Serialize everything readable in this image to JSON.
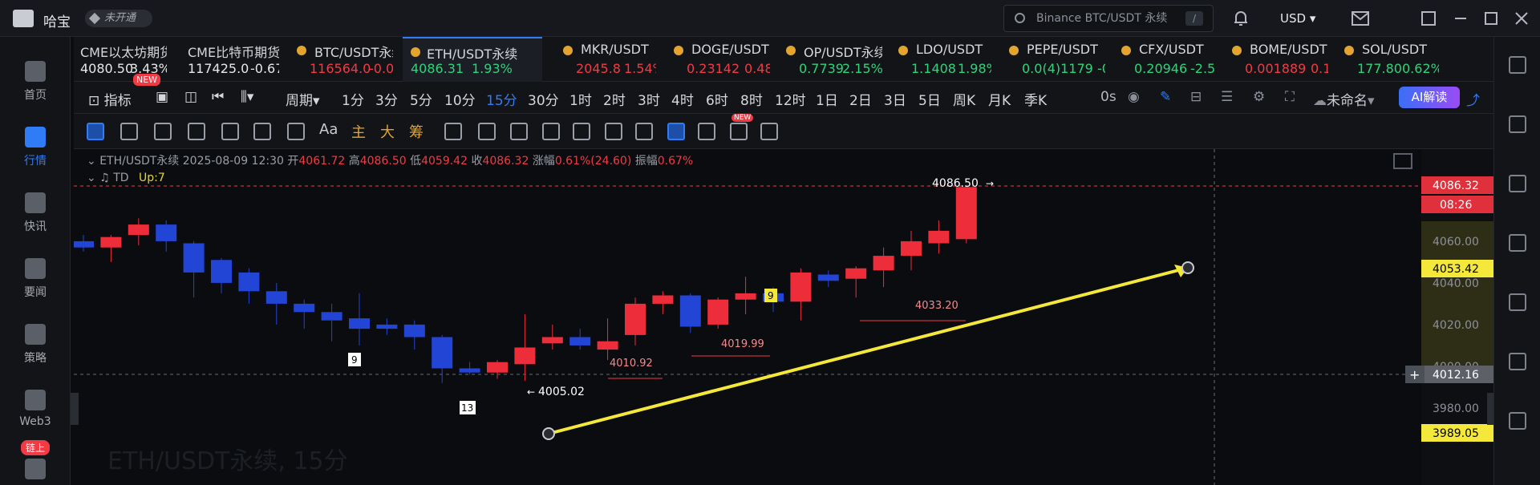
{
  "app": {
    "name": "哈宝",
    "vip_label": "未开通"
  },
  "search": {
    "placeholder": "Binance BTC/USDT 永续",
    "shortcut": "/"
  },
  "currency": "USD",
  "sidebar": {
    "items": [
      {
        "label": "首页",
        "icon": "home-icon"
      },
      {
        "label": "行情",
        "icon": "chart-icon"
      },
      {
        "label": "快讯",
        "icon": "flash-news-icon"
      },
      {
        "label": "要闻",
        "icon": "news-icon"
      },
      {
        "label": "策略",
        "icon": "robot-icon"
      },
      {
        "label": "Web3",
        "icon": "web3-icon"
      },
      {
        "label": "链上",
        "icon": "onchain-icon"
      }
    ]
  },
  "tabs": [
    {
      "name": "CME以太坊期货",
      "price": "4080.50",
      "change": "3.43%",
      "color": "white"
    },
    {
      "name": "CME比特币期货",
      "price": "117425.0",
      "change": "-0.67%",
      "color": "white"
    },
    {
      "name": "BTC/USDT永续",
      "price": "116564.0",
      "change": "-0.0",
      "color": "red"
    },
    {
      "name": "ETH/USDT永续",
      "price": "4086.31",
      "change": "1.93%",
      "color": "green"
    },
    {
      "name": "MKR/USDT",
      "price": "2045.8",
      "change": "1.54%",
      "color": "red"
    },
    {
      "name": "DOGE/USDT",
      "price": "0.23142",
      "change": "0.48",
      "color": "red"
    },
    {
      "name": "OP/USDT永续",
      "price": "0.7739",
      "change": "2.15%",
      "color": "green"
    },
    {
      "name": "LDO/USDT",
      "price": "1.1408",
      "change": "1.98%",
      "color": "green"
    },
    {
      "name": "PEPE/USDT",
      "price": "0.0(4)1179",
      "change": "-0",
      "color": "green"
    },
    {
      "name": "CFX/USDT",
      "price": "0.20946",
      "change": "-2.5",
      "color": "green"
    },
    {
      "name": "BOME/USDT",
      "price": "0.001889",
      "change": "0.1",
      "color": "red"
    },
    {
      "name": "SOL/USDT",
      "price": "177.80",
      "change": "0.62%",
      "color": "green"
    }
  ],
  "toolbar": {
    "indicator": "指标",
    "new": "NEW",
    "period": "周期",
    "intervals": [
      "1分",
      "3分",
      "5分",
      "10分",
      "15分",
      "30分",
      "1时",
      "2时",
      "3时",
      "4时",
      "6时",
      "8时",
      "12时",
      "1日",
      "2日",
      "3日",
      "5日",
      "周K",
      "月K",
      "季K"
    ],
    "selected": "15分",
    "countdown": "0s",
    "layout_name": "未命名",
    "ai": "AI解读"
  },
  "draw_tools": {
    "text1": "Aa",
    "text2": "主",
    "text3": "大",
    "text4": "筹",
    "new": "NEW"
  },
  "chart": {
    "symbol": "ETH/USDT永续",
    "datetime": "2025-08-09 12:30",
    "open_label": "开",
    "open": "4061.72",
    "high_label": "高",
    "high": "4086.50",
    "low_label": "低",
    "low": "4059.42",
    "close_label": "收",
    "close": "4086.32",
    "chg_label": "涨幅",
    "chg": "0.61%(24.60)",
    "amp_label": "振幅",
    "amp": "0.67%",
    "td_label": "TD",
    "td_up": "Up:7",
    "watermark": "ETH/USDT永续, 15分",
    "price_axis": [
      "4060.00",
      "4040.00",
      "4020.00",
      "4000.00",
      "3980.00"
    ],
    "last_price": "4086.32",
    "countdown": "08:26",
    "yellow_label_1": "4053.42",
    "yellow_label_2": "3989.05",
    "crosshair_price": "4012.16",
    "annotations": {
      "high": "4086.50",
      "low": "4005.02",
      "level1": "4010.92",
      "level2": "4019.99",
      "level3": "4033.20",
      "td9a": "9",
      "td13": "13",
      "td9b": "9"
    }
  },
  "chart_data": {
    "type": "candlestick",
    "ohlc": [
      [
        4060,
        4063,
        4055,
        4057
      ],
      [
        4057,
        4063,
        4050,
        4062
      ],
      [
        4063,
        4071,
        4058,
        4068
      ],
      [
        4068,
        4070,
        4055,
        4060
      ],
      [
        4059,
        4060,
        4033,
        4045
      ],
      [
        4051,
        4052,
        4035,
        4040
      ],
      [
        4045,
        4047,
        4030,
        4036
      ],
      [
        4036,
        4040,
        4020,
        4030
      ],
      [
        4030,
        4032,
        4018,
        4026
      ],
      [
        4026,
        4030,
        4012,
        4022
      ],
      [
        4023,
        4035,
        4010,
        4018
      ],
      [
        4020,
        4023,
        4015,
        4018
      ],
      [
        4020,
        4022,
        4008,
        4014
      ],
      [
        4014,
        4015,
        3992,
        3999
      ],
      [
        3999,
        4002,
        3996,
        3997
      ],
      [
        3997,
        4003,
        3994,
        4002
      ],
      [
        4001,
        4025,
        3993,
        4009
      ],
      [
        4011,
        4020,
        4008,
        4014
      ],
      [
        4014,
        4018,
        4008,
        4010
      ],
      [
        4008,
        4023,
        4003,
        4012
      ],
      [
        4015,
        4033,
        4010,
        4030
      ],
      [
        4030,
        4036,
        4025,
        4034
      ],
      [
        4034,
        4035,
        4016,
        4019
      ],
      [
        4020,
        4033,
        4018,
        4032
      ],
      [
        4032,
        4043,
        4025,
        4035
      ],
      [
        4035,
        4038,
        4026,
        4031
      ],
      [
        4031,
        4047,
        4022,
        4045
      ],
      [
        4044,
        4046,
        4038,
        4041
      ],
      [
        4042,
        4048,
        4033,
        4047
      ],
      [
        4046,
        4057,
        4038,
        4053
      ],
      [
        4053,
        4065,
        4046,
        4060
      ],
      [
        4059,
        4070,
        4054,
        4065
      ],
      [
        4061,
        4087,
        4059,
        4086
      ]
    ]
  }
}
